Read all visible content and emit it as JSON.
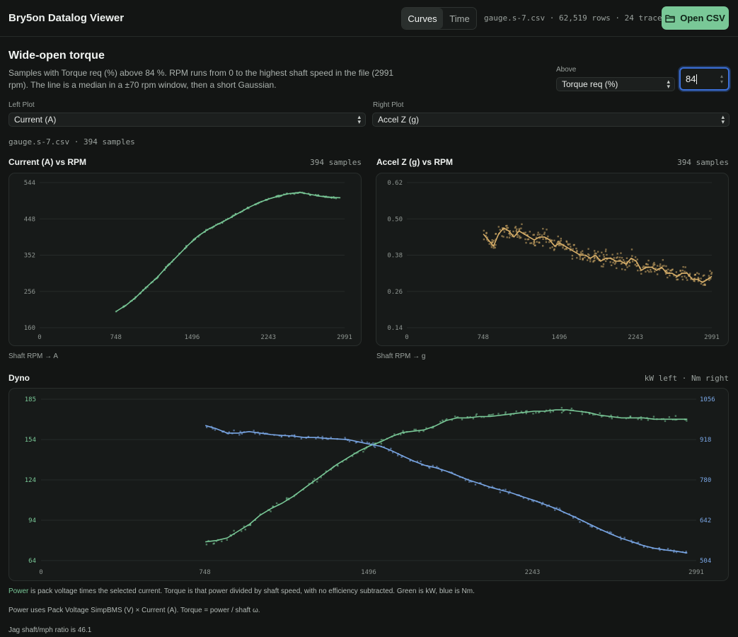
{
  "header": {
    "app_title": "Bry5on Datalog Viewer",
    "tab_curves": "Curves",
    "tab_time": "Time",
    "file_info": "gauge.s-7.csv · 62,519 rows · 24 traces",
    "open_button": "Open CSV",
    "open_icon": "folder-icon"
  },
  "section": {
    "title": "Wide-open torque",
    "description": "Samples with Torque req (%) above 84 %. RPM runs from 0 to the highest shaft speed in the file (2991 rpm). The line is a median in a ±70 rpm window, then a short Gaussian."
  },
  "filter": {
    "label": "Above",
    "channel": "Torque req (%)",
    "threshold": "84"
  },
  "plots": {
    "left_label": "Left Plot",
    "left_value": "Current (A)",
    "right_label": "Right Plot",
    "right_value": "Accel Z (g)",
    "sample_info": "gauge.s-7.csv · 394 samples"
  },
  "left_chart": {
    "title": "Current (A) vs RPM",
    "count": "394 samples",
    "axis_note": "Shaft RPM → A"
  },
  "right_chart": {
    "title": "Accel Z (g) vs RPM",
    "count": "394 samples",
    "axis_note": "Shaft RPM → g"
  },
  "dyno": {
    "title": "Dyno",
    "units_note": "kW left · Nm right"
  },
  "footnotes": {
    "power_word": "Power",
    "line1_rest": " is pack voltage times the selected current. Torque is that power divided by shaft speed, with no efficiency subtracted. Green is kW, blue is Nm.",
    "line2": "Power uses Pack Voltage SimpBMS (V) × Current (A). Torque = power / shaft ω.",
    "line3": "Jag shaft/mph ratio is 46.1"
  },
  "colors": {
    "current": "#79c897",
    "accel": "#d9b06a",
    "power": "#79c897",
    "torque": "#7aa7e6"
  },
  "chart_data": [
    {
      "type": "scatter",
      "title": "Current (A) vs RPM",
      "xlabel": "Shaft RPM",
      "ylabel": "A",
      "xlim": [
        0,
        2991
      ],
      "ylim": [
        160,
        544
      ],
      "xticks": [
        "0",
        "748",
        "1496",
        "2243",
        "2991"
      ],
      "yticks": [
        "160",
        "256",
        "352",
        "448",
        "544"
      ],
      "series": [
        {
          "x": [
            750,
            850,
            950,
            1050,
            1150,
            1250,
            1350,
            1450,
            1550,
            1650,
            1750,
            1850,
            1950,
            2050,
            2150,
            2250,
            2350,
            2450,
            2550,
            2650,
            2750,
            2850,
            2950
          ],
          "values": [
            203,
            220,
            242,
            268,
            292,
            322,
            349,
            377,
            402,
            420,
            434,
            448,
            463,
            478,
            491,
            501,
            509,
            515,
            518,
            513,
            508,
            505,
            504
          ]
        }
      ]
    },
    {
      "type": "scatter",
      "title": "Accel Z (g) vs RPM",
      "xlabel": "Shaft RPM",
      "ylabel": "g",
      "xlim": [
        0,
        2991
      ],
      "ylim": [
        0.14,
        0.62
      ],
      "xticks": [
        "0",
        "748",
        "1496",
        "2243",
        "2991"
      ],
      "yticks": [
        "0.14",
        "0.26",
        "0.38",
        "0.50",
        "0.62"
      ],
      "series": [
        {
          "x": [
            750,
            800,
            850,
            900,
            950,
            1000,
            1050,
            1100,
            1150,
            1200,
            1250,
            1300,
            1350,
            1400,
            1450,
            1500,
            1550,
            1600,
            1650,
            1700,
            1750,
            1800,
            1850,
            1900,
            1950,
            2000,
            2050,
            2100,
            2150,
            2200,
            2250,
            2300,
            2350,
            2400,
            2450,
            2500,
            2550,
            2600,
            2650,
            2700,
            2750,
            2800,
            2850,
            2900,
            2950,
            2991
          ],
          "values": [
            0.45,
            0.43,
            0.41,
            0.45,
            0.47,
            0.46,
            0.44,
            0.46,
            0.45,
            0.44,
            0.43,
            0.44,
            0.44,
            0.43,
            0.41,
            0.42,
            0.41,
            0.4,
            0.39,
            0.38,
            0.38,
            0.37,
            0.38,
            0.36,
            0.37,
            0.37,
            0.36,
            0.36,
            0.35,
            0.37,
            0.36,
            0.33,
            0.34,
            0.34,
            0.33,
            0.34,
            0.32,
            0.32,
            0.31,
            0.32,
            0.32,
            0.3,
            0.3,
            0.29,
            0.3,
            0.31
          ]
        }
      ]
    },
    {
      "type": "line",
      "title": "Dyno",
      "xlabel": "Shaft RPM",
      "xlim": [
        0,
        2991
      ],
      "xticks": [
        "0",
        "748",
        "1496",
        "2243",
        "2991"
      ],
      "ylim_left": [
        64,
        185
      ],
      "yticks_left": [
        "64",
        "94",
        "124",
        "154",
        "185"
      ],
      "ylim_right": [
        504,
        1056
      ],
      "yticks_right": [
        "504",
        "642",
        "780",
        "918",
        "1056"
      ],
      "units_note": "kW left · Nm right",
      "series": [
        {
          "axis": "left",
          "x": [
            750,
            800,
            850,
            900,
            950,
            1000,
            1050,
            1100,
            1150,
            1200,
            1250,
            1300,
            1350,
            1400,
            1450,
            1500,
            1550,
            1600,
            1650,
            1700,
            1750,
            1800,
            1850,
            1900,
            1950,
            2000,
            2050,
            2100,
            2150,
            2200,
            2250,
            2300,
            2350,
            2400,
            2450,
            2500,
            2550,
            2600,
            2650,
            2700,
            2750,
            2800,
            2850,
            2900,
            2950
          ],
          "values": [
            78,
            79,
            81,
            86,
            91,
            98,
            103,
            107,
            112,
            118,
            124,
            130,
            136,
            141,
            146,
            150,
            153,
            157,
            160,
            161,
            162,
            165,
            169,
            171,
            171,
            172,
            172,
            173,
            174,
            175,
            176,
            176,
            177,
            177,
            176,
            175,
            173,
            172,
            171,
            171,
            171,
            170,
            170,
            170,
            170
          ]
        },
        {
          "axis": "right",
          "x": [
            750,
            800,
            850,
            900,
            950,
            1000,
            1050,
            1100,
            1150,
            1200,
            1250,
            1300,
            1350,
            1400,
            1450,
            1500,
            1550,
            1600,
            1650,
            1700,
            1750,
            1800,
            1850,
            1900,
            1950,
            2000,
            2050,
            2100,
            2150,
            2200,
            2250,
            2300,
            2350,
            2400,
            2450,
            2500,
            2550,
            2600,
            2650,
            2700,
            2750,
            2800,
            2850,
            2900,
            2950
          ],
          "values": [
            966,
            955,
            940,
            940,
            945,
            940,
            935,
            932,
            930,
            925,
            925,
            922,
            920,
            918,
            910,
            902,
            895,
            880,
            862,
            845,
            830,
            822,
            810,
            795,
            780,
            768,
            755,
            745,
            735,
            722,
            710,
            696,
            682,
            665,
            648,
            630,
            612,
            595,
            580,
            568,
            555,
            546,
            540,
            536,
            530
          ]
        }
      ]
    }
  ]
}
